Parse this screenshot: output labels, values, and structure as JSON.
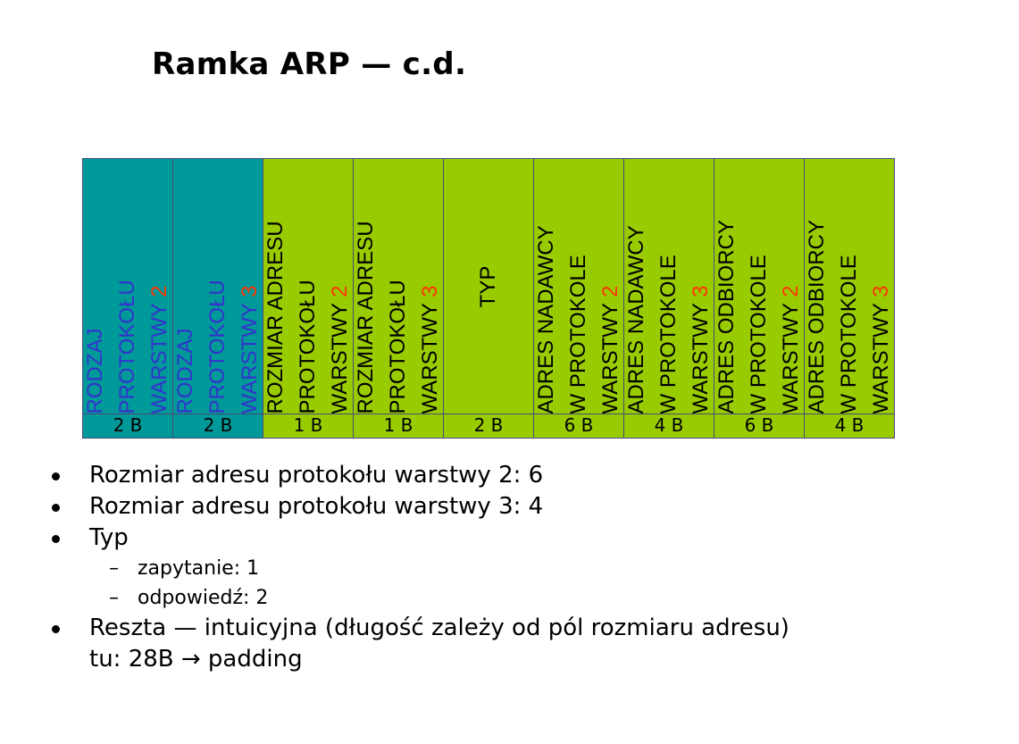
{
  "title": "Ramka ARP — c.d.",
  "fields": [
    {
      "lines": [
        "RODZAJ",
        "PROTOKOŁU",
        "WARSTWY "
      ],
      "num": "2",
      "size": "2 B",
      "color": "teal"
    },
    {
      "lines": [
        "RODZAJ",
        "PROTOKOŁU",
        "WARSTWY "
      ],
      "num": "3",
      "size": "2 B",
      "color": "teal"
    },
    {
      "lines": [
        "ROZMIAR ADRESU",
        "PROTOKOŁU",
        "WARSTWY "
      ],
      "num": "2",
      "size": "1 B",
      "color": "green"
    },
    {
      "lines": [
        "ROZMIAR ADRESU",
        "PROTOKOŁU",
        "WARSTWY "
      ],
      "num": "3",
      "size": "1 B",
      "color": "green"
    },
    {
      "lines": [
        "TYP"
      ],
      "num": "",
      "size": "2 B",
      "color": "green"
    },
    {
      "lines": [
        "ADRES NADAWCY",
        "W PROTOKOLE",
        "WARSTWY "
      ],
      "num": "2",
      "size": "6 B",
      "color": "green"
    },
    {
      "lines": [
        "ADRES NADAWCY",
        "W PROTOKOLE",
        "WARSTWY "
      ],
      "num": "3",
      "size": "4 B",
      "color": "green"
    },
    {
      "lines": [
        "ADRES ODBIORCY",
        "W PROTOKOLE",
        "WARSTWY "
      ],
      "num": "2",
      "size": "6 B",
      "color": "green"
    },
    {
      "lines": [
        "ADRES ODBIORCY",
        "W PROTOKOLE",
        "WARSTWY "
      ],
      "num": "3",
      "size": "4 B",
      "color": "green"
    }
  ],
  "bullets": {
    "item1": "Rozmiar adresu protokołu warstwy 2: 6",
    "item2": "Rozmiar adresu protokołu warstwy 3: 4",
    "item3": "Typ",
    "item3_sub1": "zapytanie: 1",
    "item3_sub2": "odpowiedź: 2",
    "item4_line1": "Reszta — intuicyjna (długość zależy od pól rozmiaru adresu)",
    "item4_line2": "tu: 28B → padding"
  },
  "colors": {
    "teal": "#009999",
    "green": "#99cc00",
    "teal_text": "#3333cc",
    "number_red": "#ff3300"
  }
}
